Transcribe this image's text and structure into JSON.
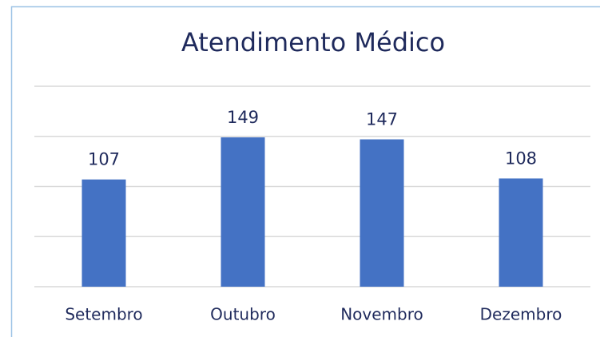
{
  "chart_data": {
    "type": "bar",
    "title": "Atendimento Médico",
    "categories": [
      "Setembro",
      "Outubro",
      "Novembro",
      "Dezembro"
    ],
    "values": [
      107,
      149,
      147,
      108
    ],
    "color": "#4472c4",
    "ylim": [
      0,
      200
    ],
    "yticks": [
      0,
      50,
      100,
      150,
      200
    ],
    "grid": true
  }
}
